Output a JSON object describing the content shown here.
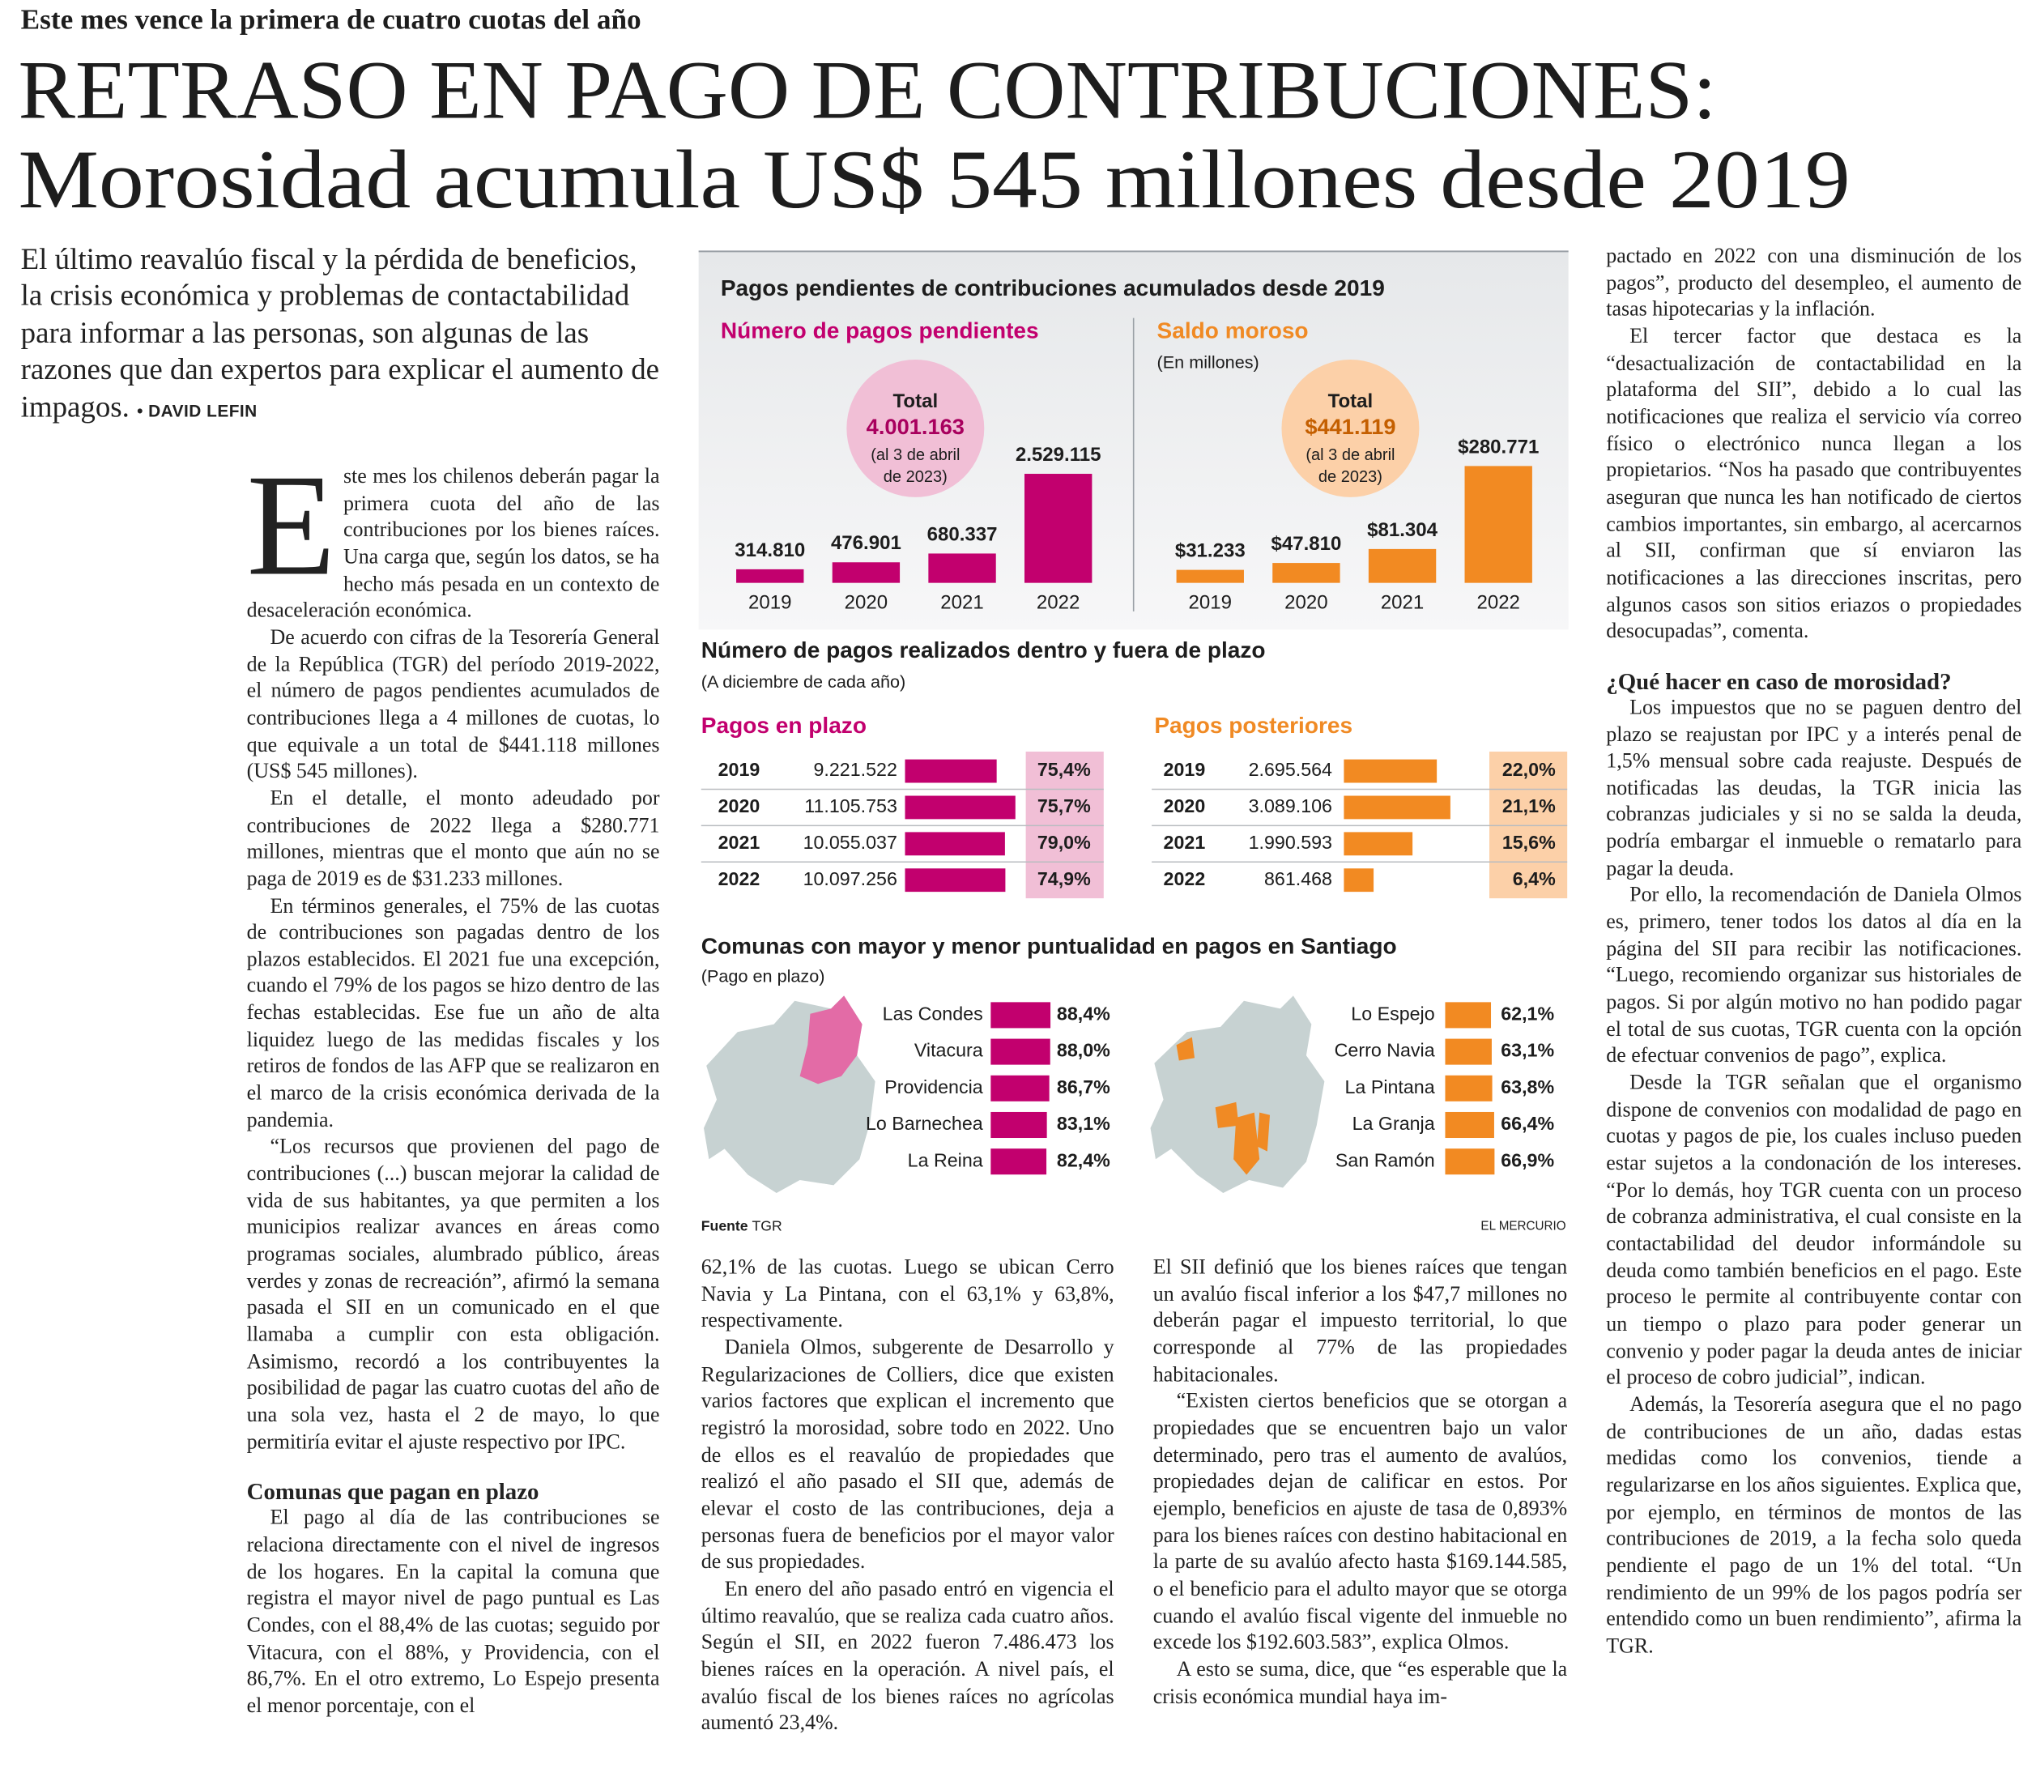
{
  "kicker": "Este mes vence la primera de cuatro cuotas del año",
  "title": [
    "RETRASO EN PAGO DE CONTRIBUCIONES:",
    "Morosidad acumula US$ 545 millones desde 2019"
  ],
  "lead": "El último reavalúo fiscal y la pérdida de beneficios, la crisis económica y problemas de contactabilidad para informar a las personas, son algunas de las razones que dan expertos para explicar el aumento de impagos.",
  "byline": "• DAVID LEFIN",
  "infographic": {
    "title": "Pagos pendientes de contribuciones acumulados desde 2019",
    "pending": {
      "title": "Número de pagos pendientes",
      "total_label": "Total",
      "total": "4.001.163",
      "total_note": [
        "(al 3 de abril",
        "de 2023)"
      ],
      "categories": [
        "2019",
        "2020",
        "2021",
        "2022"
      ],
      "values": [
        314810,
        476901,
        680337,
        2529115
      ],
      "value_labels": [
        "314.810",
        "476.901",
        "680.337",
        "2.529.115"
      ],
      "color": "#c2006e"
    },
    "arrears": {
      "title": "Saldo moroso",
      "subtitle": "(En millones)",
      "total_label": "Total",
      "total": "$441.119",
      "total_note": [
        "(al 3 de abril",
        "de 2023)"
      ],
      "categories": [
        "2019",
        "2020",
        "2021",
        "2022"
      ],
      "values": [
        31233,
        47810,
        81304,
        280771
      ],
      "value_labels": [
        "$31.233",
        "$47.810",
        "$81.304",
        "$280.771"
      ],
      "color": "#f28a22"
    },
    "payments": {
      "title": "Número de pagos realizados dentro y fuera de plazo",
      "subtitle": "(A diciembre de cada año)"
    },
    "on_time": {
      "title": "Pagos en plazo",
      "years": [
        "2019",
        "2020",
        "2021",
        "2022"
      ],
      "values": [
        9221522,
        11105753,
        10055037,
        10097256
      ],
      "value_labels": [
        "9.221.522",
        "11.105.753",
        "10.055.037",
        "10.097.256"
      ],
      "shares": [
        75.4,
        75.7,
        79.0,
        74.9
      ],
      "share_labels": [
        "75,4%",
        "75,7%",
        "79,0%",
        "74,9%"
      ],
      "color": "#c2006e"
    },
    "late": {
      "title": "Pagos posteriores",
      "years": [
        "2019",
        "2020",
        "2021",
        "2022"
      ],
      "values": [
        2695564,
        3089106,
        1990593,
        861468
      ],
      "value_labels": [
        "2.695.564",
        "3.089.106",
        "1.990.593",
        "861.468"
      ],
      "shares": [
        22.0,
        21.1,
        15.6,
        6.4
      ],
      "share_labels": [
        "22,0%",
        "21,1%",
        "15,6%",
        "6,4%"
      ],
      "color": "#f28a22"
    },
    "communes": {
      "title": "Comunas con mayor y menor puntualidad en pagos en Santiago",
      "subtitle": "(Pago en plazo)",
      "best": {
        "names": [
          "Las Condes",
          "Vitacura",
          "Providencia",
          "Lo Barnechea",
          "La Reina"
        ],
        "values": [
          88.4,
          88.0,
          86.7,
          83.1,
          82.4
        ],
        "value_labels": [
          "88,4%",
          "88,0%",
          "86,7%",
          "83,1%",
          "82,4%"
        ],
        "color": "#c2006e"
      },
      "worst": {
        "names": [
          "Lo Espejo",
          "Cerro Navia",
          "La Pintana",
          "La Granja",
          "San Ramón"
        ],
        "values": [
          62.1,
          63.1,
          63.8,
          66.4,
          66.9
        ],
        "value_labels": [
          "62,1%",
          "63,1%",
          "63,8%",
          "66,4%",
          "66,9%"
        ],
        "color": "#f28a22"
      }
    },
    "source_label": "Fuente",
    "source": "TGR",
    "credit": "EL MERCURIO"
  },
  "columns": [
    {
      "blocks": [
        {
          "drop_cap": "E",
          "text": "ste mes los chilenos deberán pagar la primera cuota del año de las contribuciones por los bienes raíces. Una carga que, según los datos, se ha hecho más pesada en un contexto de desaceleración económica."
        },
        {
          "text": "De acuerdo con cifras de la Tesorería General de la República (TGR) del período 2019-2022, el número de pagos pendientes acumulados de contribuciones llega a 4 millones de cuotas, lo que equivale a un total de $441.118 millones (US$ 545 millones)."
        },
        {
          "text": "En el detalle, el monto adeudado por contribuciones de 2022 llega a $280.771 millones, mientras que el monto que aún no se paga de 2019 es de $31.233 millones."
        },
        {
          "text": "En términos generales, el 75% de las cuotas de contribuciones son pagadas dentro de los plazos establecidos. El 2021 fue una excepción, cuando el 79% de los pagos se hizo dentro de las fechas establecidas. Ese fue un año de alta liquidez luego de las medidas fiscales y los retiros de fondos de las AFP que se realizaron en el marco de la crisis económica derivada de la pandemia."
        },
        {
          "text": "“Los recursos que provienen del pago de contribuciones (...) buscan mejorar la calidad de vida de sus habitantes, ya que permiten a los municipios realizar avances en áreas como programas sociales, alumbrado público, áreas verdes y zonas de recreación”, afirmó la semana pasada el SII en un comunicado en el que llamaba a cumplir con esta obligación. Asimismo, recordó a los contribuyentes la posibilidad de pagar las cuatro cuotas del año de una sola vez, hasta el 2 de mayo, lo que permitiría evitar el ajuste respectivo por IPC."
        },
        {
          "heading": "Comunas que pagan en plazo"
        },
        {
          "text": "El pago al día de las contribuciones se relaciona directamente con el nivel de ingresos de los hogares. En la capital la comuna que registra el mayor nivel de pago puntual es Las Condes, con el 88,4% de las cuotas; seguido por Vitacura, con el 88%, y Providencia, con el 86,7%. En el otro extremo, Lo Espejo presenta el menor porcentaje, con el"
        }
      ]
    },
    {
      "blocks": [
        {
          "text": "62,1% de las cuotas. Luego se ubican Cerro Navia y La Pintana, con el 63,1% y 63,8%, respectivamente."
        },
        {
          "text": "Daniela Olmos, subgerente de Desarrollo y Regularizaciones de Colliers, dice que existen varios factores que explican el incremento que registró la morosidad, sobre todo en 2022. Uno de ellos es el reavalúo de propiedades que realizó el año pasado el SII que, además de elevar el costo de las contribuciones, deja a personas fuera de beneficios por el mayor valor de sus propiedades."
        },
        {
          "text": "En enero del año pasado entró en vigencia el último reavalúo, que se realiza cada cuatro años. Según el SII, en 2022 fueron 7.486.473 los bienes raíces en la operación. A nivel país, el avalúo fiscal de los bienes raíces no agrícolas aumentó 23,4%."
        }
      ]
    },
    {
      "blocks": [
        {
          "text": "El SII definió que los bienes raíces que tengan un avalúo fiscal inferior a los $47,7 millones no deberán pagar el impuesto territorial, lo que corresponde al 77% de las propiedades habitacionales."
        },
        {
          "text": "“Existen ciertos beneficios que se otorgan a propiedades que se encuentren bajo un valor determinado, pero tras el aumento de avalúos, propiedades dejan de calificar en estos. Por ejemplo, beneficios en ajuste de tasa de 0,893% para los bienes raíces con destino habitacional en la parte de su avalúo afecto hasta $169.144.585, o el beneficio para el adulto mayor que se otorga cuando el avalúo fiscal vigente del inmueble no excede los $192.603.583”, explica Olmos."
        },
        {
          "text": "A esto se suma, dice, que “es esperable que la crisis económica mundial haya im-"
        }
      ]
    },
    {
      "blocks": [
        {
          "text": "pactado en 2022 con una disminución de los pagos”, producto del desempleo, el aumento de tasas hipotecarias y la inflación."
        },
        {
          "text": "El tercer factor que destaca es la “desactualización de contactabilidad en la plataforma del SII”, debido a lo cual las notificaciones que realiza el servicio vía correo físico o electrónico nunca llegan a los propietarios. “Nos ha pasado que contribuyentes aseguran que nunca les han notificado de ciertos cambios importantes, sin embargo, al acercarnos al SII, confirman que sí enviaron las notificaciones a las direcciones inscritas, pero algunos casos son sitios eriazos o propiedades desocupadas”, comenta."
        },
        {
          "heading": "¿Qué hacer en caso de morosidad?"
        },
        {
          "text": "Los impuestos que no se paguen dentro del plazo se reajustan por IPC y a interés penal de 1,5% mensual sobre cada reajuste. Después de notificadas las deudas, la TGR inicia las cobranzas judiciales y si no se salda la deuda, podría embargar el inmueble o rematarlo para pagar la deuda."
        },
        {
          "text": "Por ello, la recomendación de Daniela Olmos es, primero, tener todos los datos al día en la página del SII para recibir las notificaciones. “Luego, recomiendo organizar sus historiales de pagos. Si por algún motivo no han podido pagar el total de sus cuotas, TGR cuenta con la opción de efectuar convenios de pago”, explica."
        },
        {
          "text": "Desde la TGR señalan que el organismo dispone de convenios con modalidad de pago en cuotas y pagos de pie, los cuales incluso pueden estar sujetos a la condonación de los intereses. “Por lo demás, hoy TGR cuenta con un proceso de cobranza administrativa, el cual consiste en la contactabilidad del deudor informándole su deuda como también beneficios en el pago. Este proceso le permite al contribuyente contar con un tiempo o plazo para poder generar un convenio y poder pagar la deuda antes de iniciar el proceso de cobro judicial”, indican."
        },
        {
          "text": "Además, la Tesorería asegura que el no pago de contribuciones de un año, dadas estas medidas como los convenios, tiende a regularizarse en los años siguientes. Explica que, por ejemplo, en términos de montos de las contribuciones de 2019, a la fecha solo queda pendiente el pago de un 1% del total. “Un rendimiento de un 99% de los pagos podría ser entendido como un buen rendimiento”, afirma la TGR."
        }
      ]
    }
  ]
}
